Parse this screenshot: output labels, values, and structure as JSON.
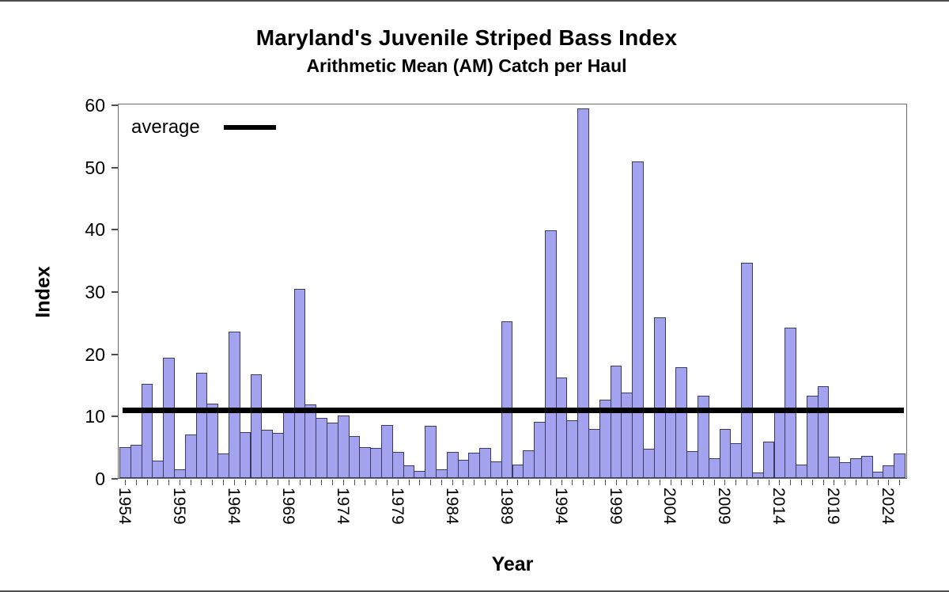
{
  "chart_data": {
    "type": "bar",
    "title": "Maryland's Juvenile Striped Bass Index",
    "subtitle": "Arithmetic Mean (AM) Catch per Haul",
    "xlabel": "Year",
    "ylabel": "Index",
    "ylim": [
      0,
      60
    ],
    "yticks": [
      0,
      10,
      20,
      30,
      40,
      50,
      60
    ],
    "xtick_labels": [
      "1954",
      "1959",
      "1964",
      "1969",
      "1974",
      "1979",
      "1984",
      "1989",
      "1994",
      "1999",
      "2004",
      "2009",
      "2014",
      "2019",
      "2024"
    ],
    "grid": false,
    "legend_position": "top-left",
    "legend": [
      {
        "label": "average",
        "symbol": "line",
        "color": "#000000"
      }
    ],
    "average_line_value": 10.9,
    "bar_fill_color": "#a2a2ee",
    "bar_border_color": "#3a3a5e",
    "years": [
      1954,
      1955,
      1956,
      1957,
      1958,
      1959,
      1960,
      1961,
      1962,
      1963,
      1964,
      1965,
      1966,
      1967,
      1968,
      1969,
      1970,
      1971,
      1972,
      1973,
      1974,
      1975,
      1976,
      1977,
      1978,
      1979,
      1980,
      1981,
      1982,
      1983,
      1984,
      1985,
      1986,
      1987,
      1988,
      1989,
      1990,
      1991,
      1992,
      1993,
      1994,
      1995,
      1996,
      1997,
      1998,
      1999,
      2000,
      2001,
      2002,
      2003,
      2004,
      2005,
      2006,
      2007,
      2008,
      2009,
      2010,
      2011,
      2012,
      2013,
      2014,
      2015,
      2016,
      2017,
      2018,
      2019,
      2020,
      2021,
      2022,
      2023,
      2024,
      2025
    ],
    "values": [
      5.0,
      5.4,
      15.1,
      2.8,
      19.3,
      1.4,
      7.0,
      16.9,
      12.0,
      4.0,
      23.5,
      7.4,
      16.6,
      7.7,
      7.2,
      10.7,
      30.4,
      11.8,
      9.7,
      8.9,
      10.1,
      6.7,
      4.9,
      4.8,
      8.5,
      4.2,
      2.0,
      1.2,
      8.4,
      1.4,
      4.2,
      2.9,
      4.1,
      4.8,
      2.7,
      25.2,
      2.1,
      4.4,
      9.0,
      39.8,
      16.2,
      9.3,
      59.4,
      7.9,
      12.6,
      18.1,
      13.7,
      50.8,
      4.7,
      25.8,
      11.0,
      17.8,
      4.3,
      13.2,
      3.2,
      7.9,
      5.6,
      34.6,
      0.9,
      5.8,
      11.0,
      24.2,
      2.2,
      13.2,
      14.8,
      3.4,
      2.5,
      3.2,
      3.6,
      1.0,
      2.0,
      4.0
    ]
  }
}
